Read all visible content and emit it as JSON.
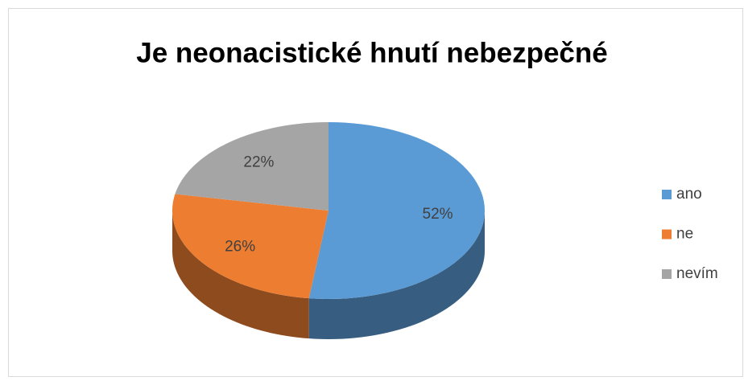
{
  "chart_data": {
    "type": "pie",
    "title": "Je neonacistické hnutí nebezpečné",
    "categories": [
      "ano",
      "ne",
      "nevím"
    ],
    "values": [
      52,
      26,
      22
    ],
    "value_labels": [
      "52%",
      "26%",
      "22%"
    ],
    "colors": [
      "#5b9bd5",
      "#ed7d31",
      "#a5a5a5"
    ],
    "legend": "right"
  }
}
